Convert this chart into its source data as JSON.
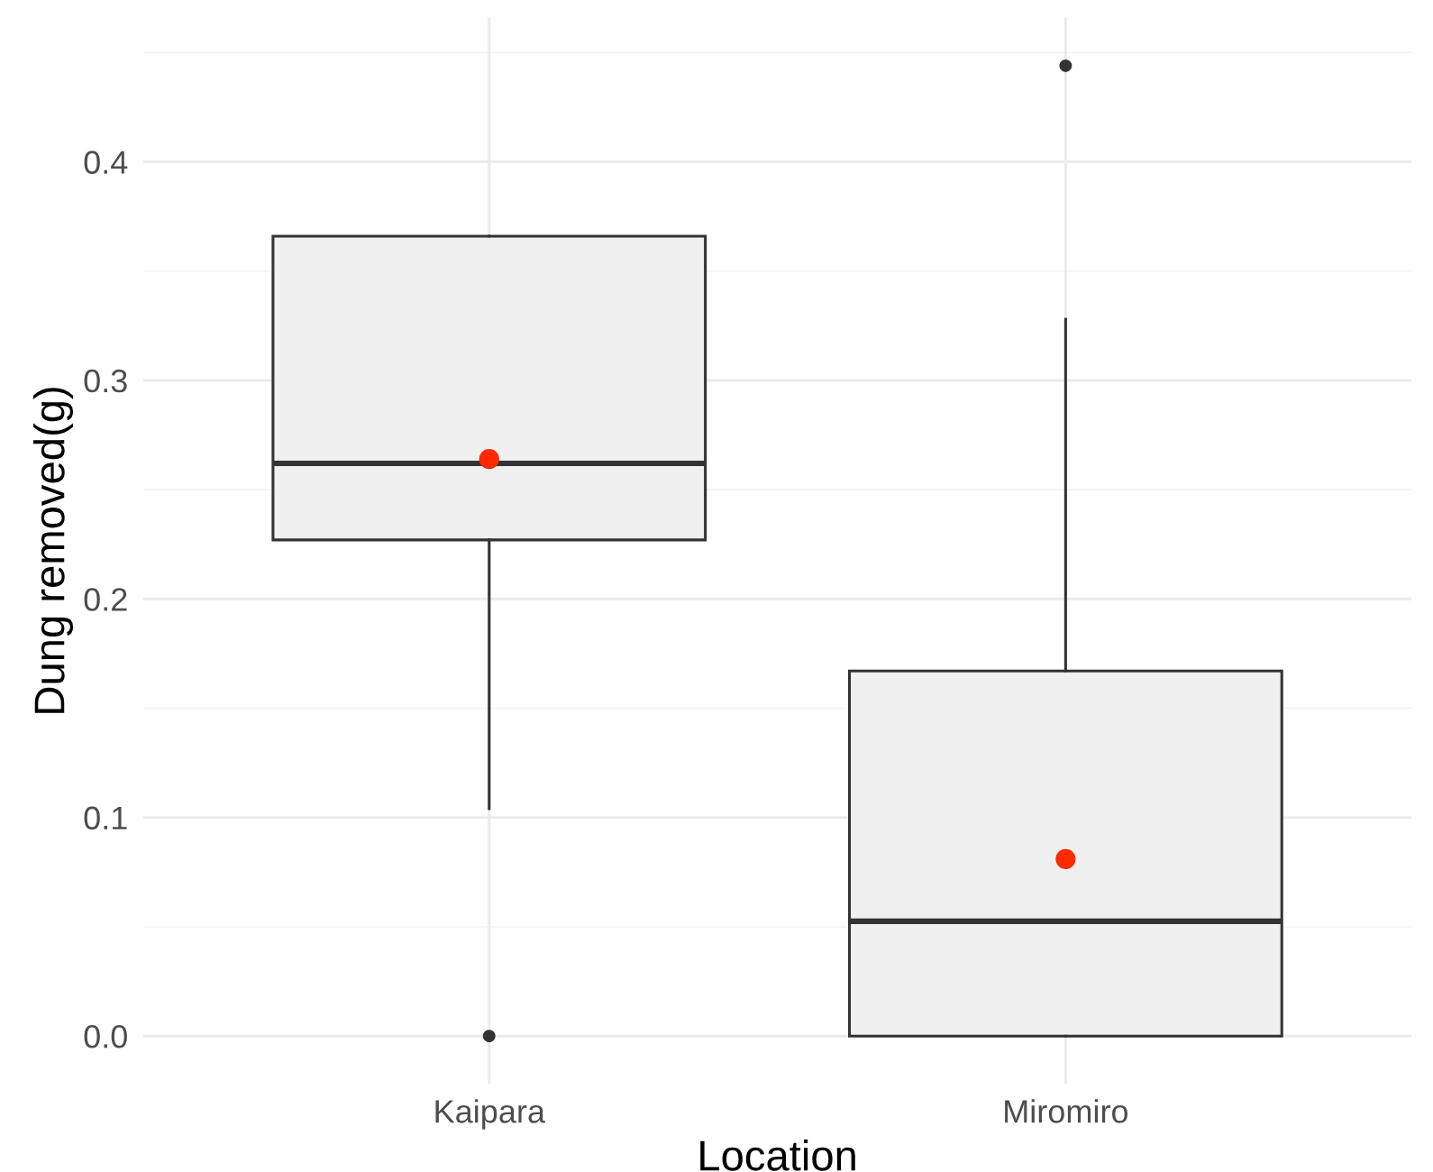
{
  "chart_data": {
    "type": "box",
    "xlabel": "Location",
    "ylabel": "Dung removed(g)",
    "categories": [
      "Kaipara",
      "Miromiro"
    ],
    "boxes": [
      {
        "low": 0.104,
        "q1": 0.227,
        "median": 0.262,
        "q3": 0.366,
        "high": 0.366,
        "mean": 0.264,
        "outliers": [
          0.0
        ]
      },
      {
        "low": 0.0,
        "q1": 0.0,
        "median": 0.0525,
        "q3": 0.167,
        "high": 0.328,
        "mean": 0.081,
        "outliers": [
          0.444
        ]
      }
    ],
    "color": "#f0f0f0",
    "ylim": [
      -0.022,
      0.466
    ],
    "yticks": [
      {
        "value": 0,
        "label": "0.0"
      },
      0.1,
      0.2,
      0.3,
      0.4
    ],
    "grid": true
  }
}
